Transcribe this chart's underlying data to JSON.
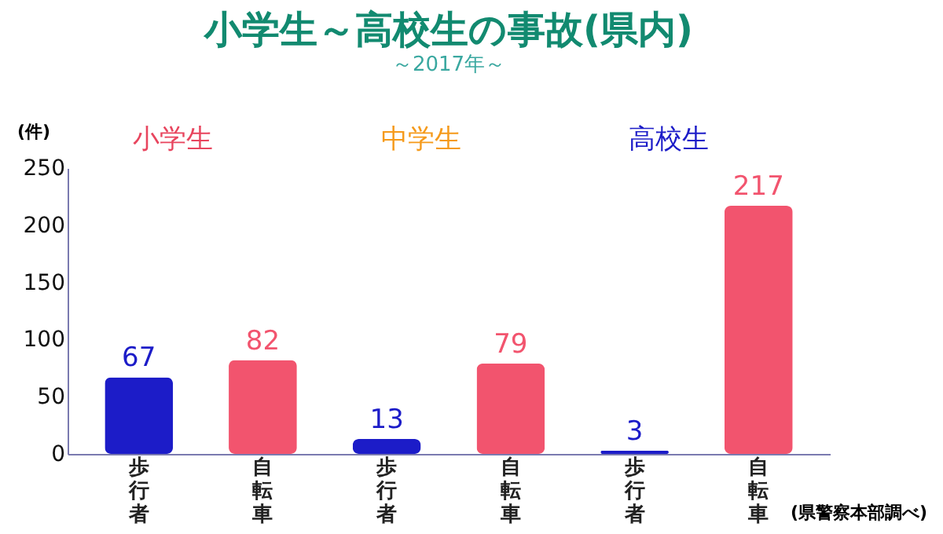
{
  "chart_data": {
    "type": "bar",
    "title": "小学生～高校生の事故(県内)",
    "subtitle": "～2017年～",
    "ylabel": "(件)",
    "categories": [
      "歩行者",
      "自転車",
      "歩行者",
      "自転車",
      "歩行者",
      "自転車"
    ],
    "values": [
      67,
      82,
      13,
      79,
      3,
      217
    ],
    "colors": [
      "#1c1cc8",
      "#f2546e",
      "#1c1cc8",
      "#f2546e",
      "#1c1cc8",
      "#f2546e"
    ],
    "ylim": [
      0,
      250
    ],
    "yticks": [
      0,
      50,
      100,
      150,
      200,
      250
    ],
    "grid": false,
    "data_labels": true,
    "annotations": [
      "小学生",
      "中学生",
      "高校生",
      "(県警察本部調べ)"
    ]
  }
}
